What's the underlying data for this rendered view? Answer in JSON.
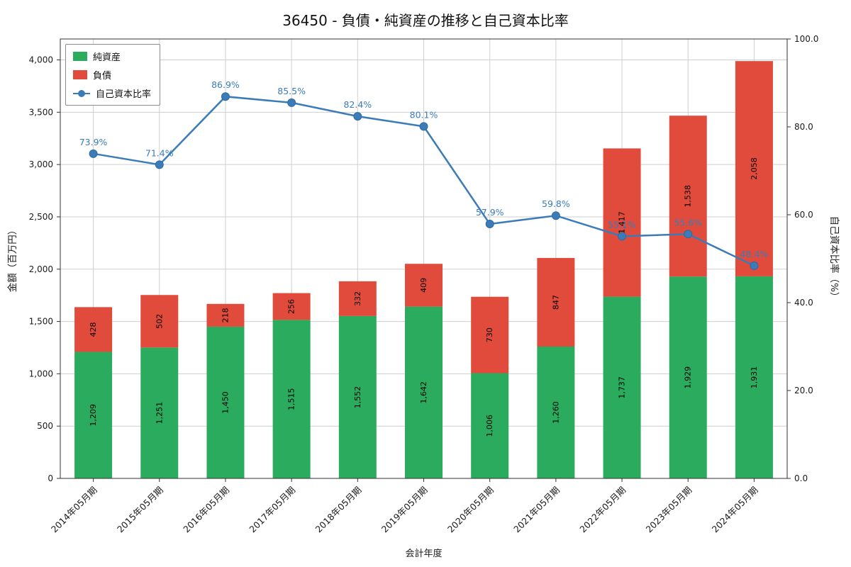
{
  "chart_data": {
    "type": "bar",
    "stacked": true,
    "overlay": "line",
    "title": "36450 - 負債・純資産の推移と自己資本比率",
    "xlabel": "会計年度",
    "ylabel_left": "金額（百万円）",
    "ylabel_right": "自己資本比率（%）",
    "categories": [
      "2014年05月期",
      "2015年05月期",
      "2016年05月期",
      "2017年05月期",
      "2018年05月期",
      "2019年05月期",
      "2020年05月期",
      "2021年05月期",
      "2022年05月期",
      "2023年05月期",
      "2024年05月期"
    ],
    "series": [
      {
        "name": "純資産",
        "color": "#2bab5d",
        "values": [
          1209,
          1251,
          1450,
          1515,
          1552,
          1642,
          1006,
          1260,
          1737,
          1929,
          1931
        ]
      },
      {
        "name": "負債",
        "color": "#e14b3b",
        "values": [
          428,
          502,
          218,
          256,
          332,
          409,
          730,
          847,
          1417,
          1538,
          2058
        ]
      }
    ],
    "line_series": {
      "name": "自己資本比率",
      "color": "#3b7cb8",
      "unit": "%",
      "values": [
        73.9,
        71.4,
        86.9,
        85.5,
        82.4,
        80.1,
        57.9,
        59.8,
        55.1,
        55.6,
        48.4
      ]
    },
    "ylim_left": [
      0,
      4200
    ],
    "yticks_left": [
      0,
      500,
      1000,
      1500,
      2000,
      2500,
      3000,
      3500,
      4000
    ],
    "ylim_right": [
      0,
      100
    ],
    "yticks_right": [
      0,
      20,
      40,
      60,
      80,
      100
    ],
    "grid": true,
    "legend_position": "upper left",
    "grid_color": "#cfcfcf",
    "spine_color": "#333333",
    "tick_label_color": "#1a1a1a",
    "bar_label_color": "#000000"
  }
}
